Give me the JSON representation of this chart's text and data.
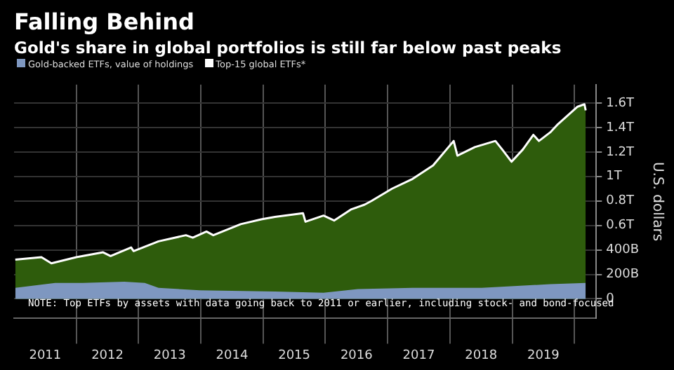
{
  "chart_data": {
    "type": "area",
    "title": "Falling Behind",
    "subtitle": "Gold's share in global portfolios is still far below past peaks",
    "ylabel": "U.S. dollars",
    "annotations": [
      "NOTE: Top ETFs by assets with data going back to 2011 or earlier, including stock- and bond-focused"
    ],
    "xlim": [
      2011,
      2020.35
    ],
    "xticks": [
      {
        "value": 2011.5,
        "label": "2011"
      },
      {
        "value": 2012,
        "label": null
      },
      {
        "value": 2012.5,
        "label": "2012"
      },
      {
        "value": 2013,
        "label": null
      },
      {
        "value": 2013.5,
        "label": "2013"
      },
      {
        "value": 2014,
        "label": null
      },
      {
        "value": 2014.5,
        "label": "2014"
      },
      {
        "value": 2015,
        "label": null
      },
      {
        "value": 2015.5,
        "label": "2015"
      },
      {
        "value": 2016,
        "label": null
      },
      {
        "value": 2016.5,
        "label": "2016"
      },
      {
        "value": 2017,
        "label": null
      },
      {
        "value": 2017.5,
        "label": "2017"
      },
      {
        "value": 2018,
        "label": null
      },
      {
        "value": 2018.5,
        "label": "2018"
      },
      {
        "value": 2019,
        "label": null
      },
      {
        "value": 2019.5,
        "label": "2019"
      },
      {
        "value": 2020,
        "label": null
      }
    ],
    "ylim": [
      -160000000000,
      1750000000000
    ],
    "yticks": [
      0,
      {
        "value": 200000000000,
        "label": "200B"
      },
      {
        "value": 400000000000,
        "label": "400B"
      },
      {
        "value": 600000000000,
        "label": "0.6T"
      },
      {
        "value": 800000000000,
        "label": "0.8T"
      },
      {
        "value": 1000000000000,
        "label": "1T"
      },
      {
        "value": 1200000000000,
        "label": "1.2T"
      },
      {
        "value": 1400000000000,
        "label": "1.4T"
      },
      {
        "value": 1600000000000,
        "label": "1.6T"
      }
    ],
    "grid": true,
    "legend": "top left",
    "series": [
      {
        "name": "Top-15 global ETFs*",
        "color": "#ffffff",
        "x": [
          2011.02,
          2011.44,
          2011.6,
          2012.0,
          2012.43,
          2012.55,
          2012.88,
          2012.92,
          2013.32,
          2013.76,
          2013.87,
          2014.09,
          2014.2,
          2014.64,
          2014.97,
          2015.19,
          2015.64,
          2015.68,
          2015.97,
          2016.14,
          2016.41,
          2016.63,
          2016.74,
          2017.07,
          2017.4,
          2017.73,
          2018.06,
          2018.12,
          2018.4,
          2018.73,
          2018.84,
          2018.99,
          2019.17,
          2019.34,
          2019.43,
          2019.61,
          2019.72,
          2019.83,
          2020.05,
          2020.16,
          2020.18
        ],
        "values": [
          320000000000,
          340000000000,
          290000000000,
          340000000000,
          380000000000,
          350000000000,
          420000000000,
          390000000000,
          470000000000,
          520000000000,
          500000000000,
          550000000000,
          520000000000,
          610000000000,
          650000000000,
          670000000000,
          700000000000,
          630000000000,
          680000000000,
          640000000000,
          730000000000,
          770000000000,
          800000000000,
          900000000000,
          980000000000,
          1090000000000,
          1290000000000,
          1170000000000,
          1240000000000,
          1290000000000,
          1220000000000,
          1120000000000,
          1220000000000,
          1340000000000,
          1290000000000,
          1360000000000,
          1420000000000,
          1470000000000,
          1570000000000,
          1590000000000,
          1540000000000
        ]
      },
      {
        "name": "Gold-backed ETFs, value of holdings",
        "color": "#7e97c0",
        "x": [
          2011.02,
          2011.66,
          2012.1,
          2012.77,
          2013.1,
          2013.32,
          2013.98,
          2015.19,
          2015.97,
          2016.52,
          2017.4,
          2018.51,
          2019.61,
          2020.18
        ],
        "values": [
          90000000000,
          130000000000,
          130000000000,
          140000000000,
          130000000000,
          90000000000,
          70000000000,
          60000000000,
          50000000000,
          80000000000,
          90000000000,
          90000000000,
          120000000000,
          130000000000
        ]
      }
    ]
  }
}
